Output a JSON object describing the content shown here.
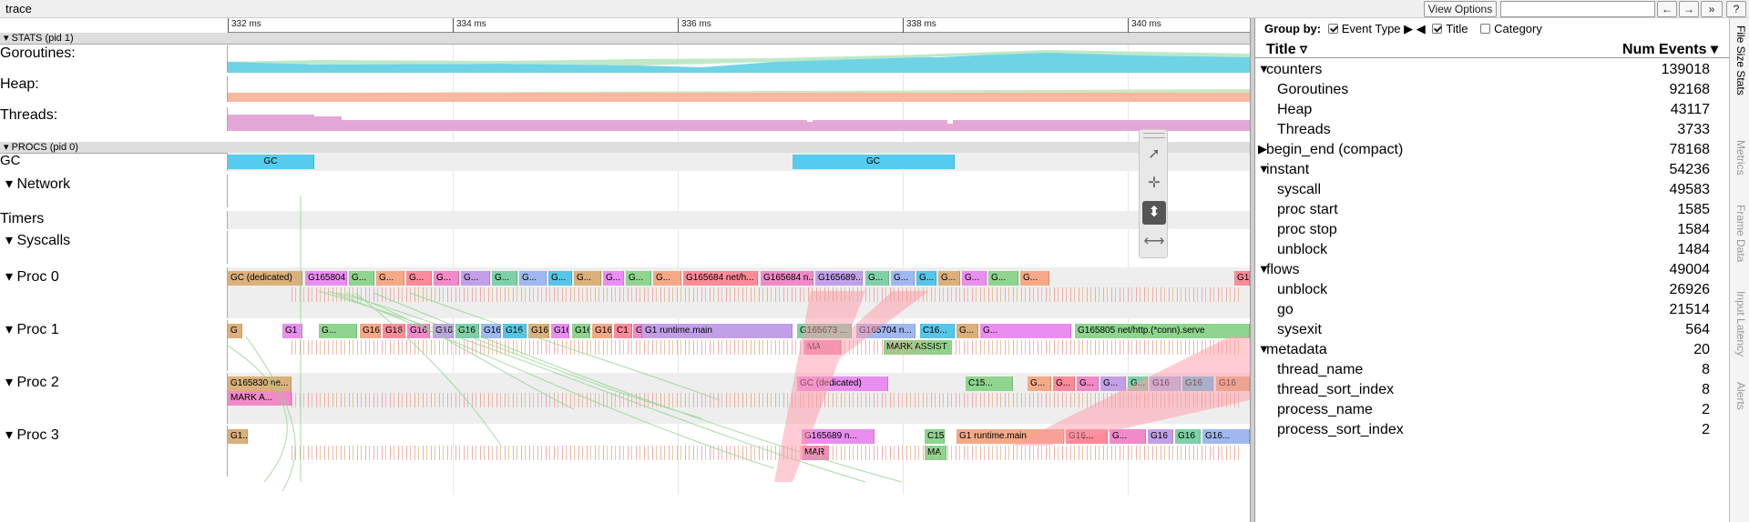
{
  "window": {
    "title": "trace"
  },
  "toolbar": {
    "view_options": "View Options",
    "search_placeholder": "",
    "prev": "←",
    "next": "→",
    "expand": "»",
    "help": "?"
  },
  "ruler": {
    "ticks": [
      "332 ms",
      "334 ms",
      "336 ms",
      "338 ms",
      "340 ms"
    ]
  },
  "stats_header": "▾ STATS (pid 1)",
  "procs_header": "▾ PROCS (pid 0)",
  "tracks": {
    "goroutines": "Goroutines:",
    "heap": "Heap:",
    "threads": "Threads:",
    "gc": "GC",
    "network": "▾  Network",
    "timers": "Timers",
    "syscalls": "▾  Syscalls",
    "proc0": "▾  Proc 0",
    "proc1": "▾  Proc 1",
    "proc2": "▾  Proc 2",
    "proc3": "▾  Proc 3"
  },
  "slices": {
    "gc": [
      "GC",
      "GC"
    ],
    "proc0": [
      "GC (dedicated)",
      "G165804 ...",
      "G...",
      "G...",
      "G...",
      "G...",
      "G...",
      "G...",
      "G...",
      "G...",
      "G...",
      "G...",
      "G...",
      "G...",
      "G165684 net/h...",
      "G165684 n...",
      "G165689...",
      "G...",
      "G...",
      "G...",
      "G...",
      "G...",
      "G...",
      "G...",
      "G16"
    ],
    "proc1": [
      "G",
      "G1",
      "G...",
      "G16",
      "G16",
      "G16",
      "G16",
      "G16",
      "G16",
      "G16",
      "G16",
      "G16",
      "G16",
      "G16",
      "C1",
      "G1",
      "G1 runtime.main",
      "G165673 ...",
      "G165704 n...",
      "C16...",
      "G...",
      "G...",
      "G165805 net/http.(*conn).serve"
    ],
    "proc1_sub": [
      "MA",
      "MARK ASSIST"
    ],
    "proc2": [
      "G165830 ne...",
      "GC (dedicated)",
      "C15...",
      "G...",
      "G...",
      "G...",
      "G...",
      "G...",
      "G16",
      "G16",
      "G16"
    ],
    "proc2_sub": [
      "MARK A..."
    ],
    "proc3": [
      "G1...",
      "G165689 n...",
      "C15",
      "G1 runtime.main",
      "G16...",
      "G...",
      "G16",
      "G16",
      "G16..."
    ],
    "proc3_sub": [
      "MAR",
      "MA"
    ]
  },
  "panel": {
    "group_by": "Group by:",
    "event_type": "Event Type ▶",
    "title_opt": "Title",
    "category_opt": "Category",
    "col_title": "Title ▿",
    "col_count": "Num Events ▾",
    "rows": [
      {
        "tri": "▼",
        "name": "counters",
        "count": "139018",
        "level": 0
      },
      {
        "tri": "",
        "name": "Goroutines",
        "count": "92168",
        "level": 1
      },
      {
        "tri": "",
        "name": "Heap",
        "count": "43117",
        "level": 1
      },
      {
        "tri": "",
        "name": "Threads",
        "count": "3733",
        "level": 1
      },
      {
        "tri": "▶",
        "name": "begin_end (compact)",
        "count": "78168",
        "level": 0
      },
      {
        "tri": "▼",
        "name": "instant",
        "count": "54236",
        "level": 0
      },
      {
        "tri": "",
        "name": "syscall",
        "count": "49583",
        "level": 1
      },
      {
        "tri": "",
        "name": "proc start",
        "count": "1585",
        "level": 1
      },
      {
        "tri": "",
        "name": "proc stop",
        "count": "1584",
        "level": 1
      },
      {
        "tri": "",
        "name": "unblock",
        "count": "1484",
        "level": 1
      },
      {
        "tri": "▼",
        "name": "flows",
        "count": "49004",
        "level": 0
      },
      {
        "tri": "",
        "name": "unblock",
        "count": "26926",
        "level": 1
      },
      {
        "tri": "",
        "name": "go",
        "count": "21514",
        "level": 1
      },
      {
        "tri": "",
        "name": "sysexit",
        "count": "564",
        "level": 1
      },
      {
        "tri": "▼",
        "name": "metadata",
        "count": "20",
        "level": 0
      },
      {
        "tri": "",
        "name": "thread_name",
        "count": "8",
        "level": 1
      },
      {
        "tri": "",
        "name": "thread_sort_index",
        "count": "8",
        "level": 1
      },
      {
        "tri": "",
        "name": "process_name",
        "count": "2",
        "level": 1
      },
      {
        "tri": "",
        "name": "process_sort_index",
        "count": "2",
        "level": 1
      }
    ],
    "vtabs": [
      "File Size Stats",
      "Metrics",
      "Frame Data",
      "Input Latency",
      "Alerts"
    ]
  },
  "colors": {
    "goroutines": "#6fd3e6",
    "heap": "#f7b8a0",
    "threads": "#e4a8d6",
    "gc": "#55ccef",
    "slice_palette": [
      "#f08ac8",
      "#8fd48f",
      "#55c5e8",
      "#c2a0e8",
      "#f5a987",
      "#dbb07a",
      "#7fd0a8",
      "#ff8a9a",
      "#e98ef0",
      "#a0b8f0"
    ]
  }
}
